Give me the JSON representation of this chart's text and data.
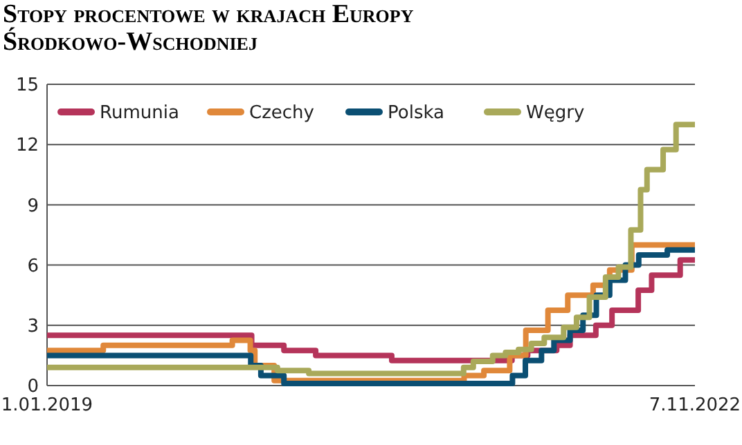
{
  "chart_data": {
    "type": "step",
    "title": "Stopy procentowe w krajach Europy Środkowo-Wschodniej",
    "xlim": [
      "2019-01-01",
      "2022-11-07"
    ],
    "xticks": [
      {
        "value": "2019-01-01",
        "label": "1.01.2019"
      },
      {
        "value": "2022-11-07",
        "label": "7.11.2022"
      }
    ],
    "ylim": [
      0,
      15
    ],
    "yticks": [
      0,
      3,
      6,
      9,
      12,
      15
    ],
    "grid": "y",
    "legend": "top left",
    "line_style": "solid",
    "marker": "none",
    "series": [
      {
        "name": "Rumunia",
        "color": "#b5345a",
        "x": [
          "2019-01-01",
          "2020-03-20",
          "2020-05-29",
          "2020-08-06",
          "2021-01-18",
          "2021-10-06",
          "2021-11-09",
          "2022-01-11",
          "2022-02-09",
          "2022-04-06",
          "2022-05-11",
          "2022-07-07",
          "2022-08-05",
          "2022-10-06",
          "2022-11-07"
        ],
        "values": [
          2.5,
          2.0,
          1.75,
          1.5,
          1.25,
          1.5,
          1.75,
          2.0,
          2.5,
          3.0,
          3.75,
          4.75,
          5.5,
          6.25,
          6.25
        ]
      },
      {
        "name": "Czechy",
        "color": "#e0883a",
        "x": [
          "2019-01-01",
          "2019-05-03",
          "2020-02-07",
          "2020-03-17",
          "2020-03-27",
          "2020-05-08",
          "2021-06-24",
          "2021-08-06",
          "2021-10-01",
          "2021-11-05",
          "2021-12-23",
          "2022-02-04",
          "2022-03-31",
          "2022-05-06",
          "2022-06-23",
          "2022-11-07"
        ],
        "values": [
          1.75,
          2.0,
          2.25,
          1.75,
          1.0,
          0.25,
          0.5,
          0.75,
          1.5,
          2.75,
          3.75,
          4.5,
          5.0,
          5.75,
          7.0,
          7.0
        ]
      },
      {
        "name": "Polska",
        "color": "#0b4f73",
        "x": [
          "2019-01-01",
          "2020-03-18",
          "2020-04-09",
          "2020-05-29",
          "2021-10-07",
          "2021-11-04",
          "2021-12-09",
          "2022-01-05",
          "2022-02-09",
          "2022-03-09",
          "2022-04-07",
          "2022-05-06",
          "2022-06-09",
          "2022-07-08",
          "2022-09-08",
          "2022-11-07"
        ],
        "values": [
          1.5,
          1.0,
          0.5,
          0.1,
          0.5,
          1.25,
          1.75,
          2.25,
          2.75,
          3.5,
          4.5,
          5.25,
          6.0,
          6.5,
          6.75,
          6.75
        ]
      },
      {
        "name": "Węgry",
        "color": "#a9a95a",
        "x": [
          "2019-01-01",
          "2020-05-15",
          "2020-07-22",
          "2021-06-23",
          "2021-07-14",
          "2021-08-25",
          "2021-09-22",
          "2021-10-20",
          "2021-11-17",
          "2021-12-15",
          "2022-01-26",
          "2022-02-23",
          "2022-03-23",
          "2022-04-27",
          "2022-05-25",
          "2022-06-21",
          "2022-07-12",
          "2022-07-26",
          "2022-08-30",
          "2022-09-27",
          "2022-11-07"
        ],
        "values": [
          0.9,
          0.75,
          0.6,
          0.9,
          1.2,
          1.5,
          1.65,
          1.8,
          2.1,
          2.4,
          2.9,
          3.4,
          4.4,
          5.4,
          5.9,
          7.75,
          9.75,
          10.75,
          11.75,
          13.0,
          13.0
        ]
      }
    ]
  }
}
